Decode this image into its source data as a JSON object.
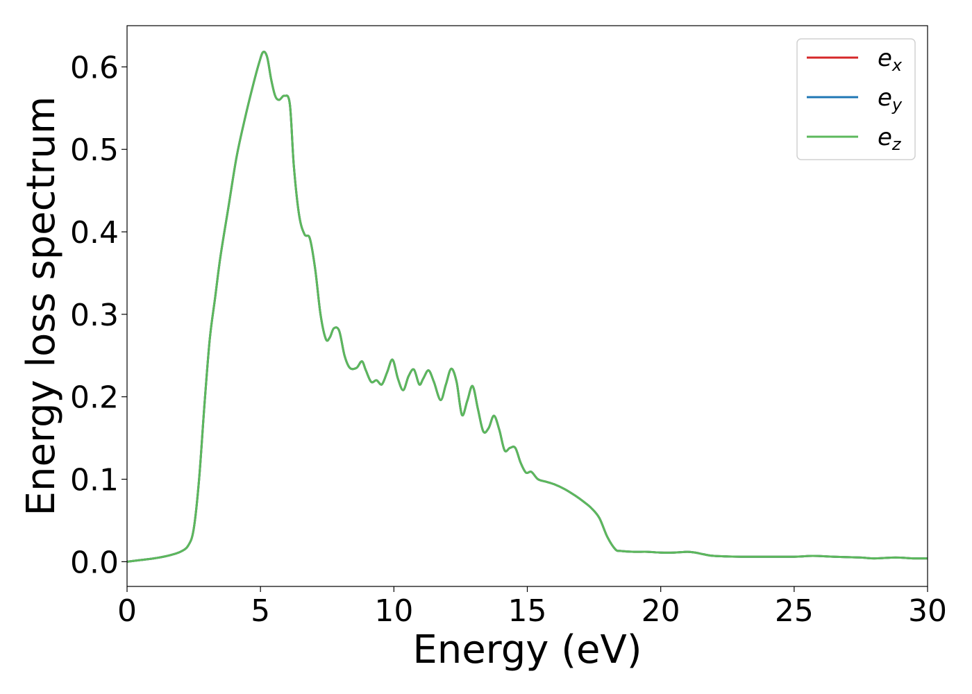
{
  "chart_data": {
    "type": "line",
    "xlabel": "Energy (eV)",
    "ylabel": "Energy loss spectrum",
    "xlim": [
      0,
      30
    ],
    "ylim": [
      -0.03,
      0.65
    ],
    "xticks": [
      0,
      5,
      10,
      15,
      20,
      25,
      30
    ],
    "xtick_labels": [
      "0",
      "5",
      "10",
      "15",
      "20",
      "25",
      "30"
    ],
    "yticks": [
      0.0,
      0.1,
      0.2,
      0.3,
      0.4,
      0.5,
      0.6
    ],
    "ytick_labels": [
      "0.0",
      "0.1",
      "0.2",
      "0.3",
      "0.4",
      "0.5",
      "0.6"
    ],
    "grid": false,
    "legend_position": "top-right",
    "x": [
      0,
      0.5,
      1,
      1.5,
      2,
      2.3,
      2.5,
      2.7,
      2.9,
      3.1,
      3.3,
      3.5,
      3.8,
      4.1,
      4.4,
      4.7,
      4.95,
      5.1,
      5.25,
      5.4,
      5.55,
      5.7,
      5.9,
      6.1,
      6.25,
      6.45,
      6.65,
      6.85,
      7.05,
      7.25,
      7.45,
      7.6,
      7.75,
      7.95,
      8.15,
      8.35,
      8.6,
      8.8,
      8.95,
      9.15,
      9.35,
      9.55,
      9.75,
      9.95,
      10.15,
      10.35,
      10.55,
      10.75,
      10.95,
      11.1,
      11.3,
      11.5,
      11.75,
      11.95,
      12.15,
      12.35,
      12.55,
      12.75,
      12.95,
      13.15,
      13.35,
      13.55,
      13.75,
      13.95,
      14.15,
      14.35,
      14.55,
      14.75,
      14.95,
      15.15,
      15.4,
      15.7,
      16.0,
      16.4,
      16.8,
      17.1,
      17.4,
      17.7,
      18.0,
      18.3,
      18.5,
      19.0,
      19.5,
      20.0,
      20.5,
      21.0,
      21.3,
      21.6,
      22.0,
      23.0,
      24.0,
      25.0,
      25.7,
      26.5,
      27.5,
      28.0,
      28.8,
      29.5,
      30.0
    ],
    "series": [
      {
        "name": "e_x",
        "color": "#d62728",
        "y": [
          0.0,
          0.002,
          0.004,
          0.007,
          0.012,
          0.02,
          0.04,
          0.1,
          0.19,
          0.27,
          0.32,
          0.37,
          0.43,
          0.49,
          0.535,
          0.575,
          0.605,
          0.618,
          0.612,
          0.585,
          0.565,
          0.56,
          0.565,
          0.555,
          0.48,
          0.42,
          0.397,
          0.392,
          0.355,
          0.3,
          0.27,
          0.272,
          0.283,
          0.28,
          0.25,
          0.235,
          0.235,
          0.243,
          0.232,
          0.218,
          0.22,
          0.215,
          0.23,
          0.245,
          0.222,
          0.208,
          0.225,
          0.233,
          0.215,
          0.222,
          0.232,
          0.218,
          0.196,
          0.215,
          0.234,
          0.218,
          0.178,
          0.195,
          0.213,
          0.185,
          0.158,
          0.162,
          0.177,
          0.16,
          0.135,
          0.138,
          0.138,
          0.12,
          0.108,
          0.109,
          0.1,
          0.097,
          0.094,
          0.088,
          0.08,
          0.073,
          0.065,
          0.053,
          0.03,
          0.015,
          0.013,
          0.012,
          0.012,
          0.011,
          0.011,
          0.012,
          0.011,
          0.009,
          0.007,
          0.006,
          0.006,
          0.006,
          0.007,
          0.006,
          0.005,
          0.004,
          0.005,
          0.004,
          0.004
        ]
      },
      {
        "name": "e_y",
        "color": "#1f77b4",
        "y": [
          0.0,
          0.002,
          0.004,
          0.007,
          0.012,
          0.02,
          0.04,
          0.1,
          0.19,
          0.27,
          0.32,
          0.37,
          0.43,
          0.49,
          0.535,
          0.575,
          0.605,
          0.618,
          0.612,
          0.585,
          0.565,
          0.56,
          0.565,
          0.555,
          0.48,
          0.42,
          0.397,
          0.392,
          0.355,
          0.3,
          0.27,
          0.272,
          0.283,
          0.28,
          0.25,
          0.235,
          0.235,
          0.243,
          0.232,
          0.218,
          0.22,
          0.215,
          0.23,
          0.245,
          0.222,
          0.208,
          0.225,
          0.233,
          0.215,
          0.222,
          0.232,
          0.218,
          0.196,
          0.215,
          0.234,
          0.218,
          0.178,
          0.195,
          0.213,
          0.185,
          0.158,
          0.162,
          0.177,
          0.16,
          0.135,
          0.138,
          0.138,
          0.12,
          0.108,
          0.109,
          0.1,
          0.097,
          0.094,
          0.088,
          0.08,
          0.073,
          0.065,
          0.053,
          0.03,
          0.015,
          0.013,
          0.012,
          0.012,
          0.011,
          0.011,
          0.012,
          0.011,
          0.009,
          0.007,
          0.006,
          0.006,
          0.006,
          0.007,
          0.006,
          0.005,
          0.004,
          0.005,
          0.004,
          0.004
        ]
      },
      {
        "name": "e_z",
        "color": "#5cb85c",
        "y": [
          0.0,
          0.002,
          0.004,
          0.007,
          0.012,
          0.02,
          0.04,
          0.1,
          0.19,
          0.27,
          0.32,
          0.37,
          0.43,
          0.49,
          0.535,
          0.575,
          0.605,
          0.618,
          0.612,
          0.585,
          0.565,
          0.56,
          0.565,
          0.555,
          0.48,
          0.42,
          0.397,
          0.392,
          0.355,
          0.3,
          0.27,
          0.272,
          0.283,
          0.28,
          0.25,
          0.235,
          0.235,
          0.243,
          0.232,
          0.218,
          0.22,
          0.215,
          0.23,
          0.245,
          0.222,
          0.208,
          0.225,
          0.233,
          0.215,
          0.222,
          0.232,
          0.218,
          0.196,
          0.215,
          0.234,
          0.218,
          0.178,
          0.195,
          0.213,
          0.185,
          0.158,
          0.162,
          0.177,
          0.16,
          0.135,
          0.138,
          0.138,
          0.12,
          0.108,
          0.109,
          0.1,
          0.097,
          0.094,
          0.088,
          0.08,
          0.073,
          0.065,
          0.053,
          0.03,
          0.015,
          0.013,
          0.012,
          0.012,
          0.011,
          0.011,
          0.012,
          0.011,
          0.009,
          0.007,
          0.006,
          0.006,
          0.006,
          0.007,
          0.006,
          0.005,
          0.004,
          0.005,
          0.004,
          0.004
        ]
      }
    ],
    "legend": [
      {
        "base": "e",
        "sub": "x",
        "color": "#d62728"
      },
      {
        "base": "e",
        "sub": "y",
        "color": "#1f77b4"
      },
      {
        "base": "e",
        "sub": "z",
        "color": "#5cb85c"
      }
    ]
  }
}
